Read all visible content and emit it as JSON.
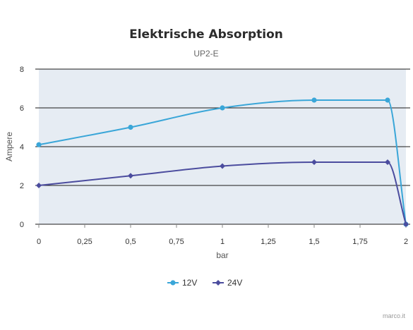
{
  "chart_data": {
    "type": "line",
    "title": "Elektrische Absorption",
    "subtitle": "UP2-E",
    "xlabel": "bar",
    "ylabel": "Ampere",
    "xlim": [
      0,
      2
    ],
    "ylim": [
      0,
      8
    ],
    "x_ticks": [
      "0",
      "0,25",
      "0,5",
      "0,75",
      "1",
      "1,25",
      "1,5",
      "1,75",
      "2"
    ],
    "y_ticks": [
      "0",
      "2",
      "4",
      "6",
      "8"
    ],
    "grid": "horizontal",
    "legend_position": "bottom-center",
    "series": [
      {
        "name": "12V",
        "color": "#3aa6d8",
        "marker": "circle",
        "x": [
          0,
          0.5,
          1,
          1.5,
          1.9,
          2
        ],
        "y": [
          4.1,
          5.0,
          6.0,
          6.4,
          6.4,
          0
        ]
      },
      {
        "name": "24V",
        "color": "#4b4c9e",
        "marker": "diamond",
        "x": [
          0,
          0.5,
          1,
          1.5,
          1.9,
          2
        ],
        "y": [
          2.0,
          2.5,
          3.0,
          3.2,
          3.2,
          0
        ]
      }
    ],
    "plot_background": "#e6ecf3"
  },
  "credit": "marco.it"
}
